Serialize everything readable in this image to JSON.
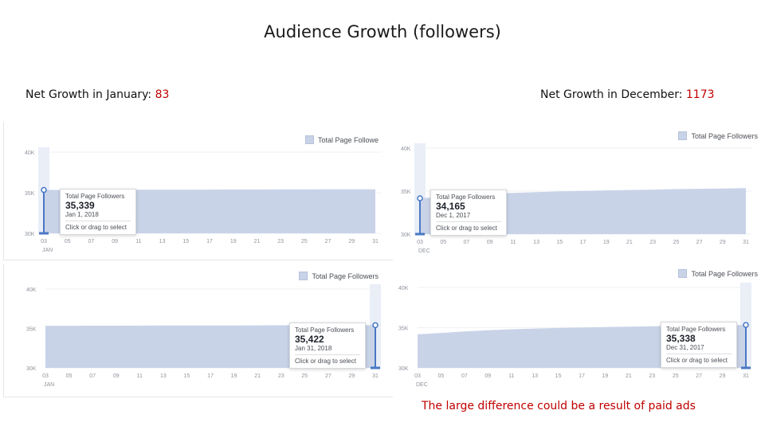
{
  "slide": {
    "title": "Audience Growth (followers)",
    "net_left_label": "Net Growth in January: ",
    "net_left_value": "83",
    "net_right_label": "Net Growth in December: ",
    "net_right_value": "1173",
    "note": "The large difference could be a result of paid ads"
  },
  "colors": {
    "area": "#c9d3e8",
    "selection": "#4a78c4",
    "selection_band": "#e9eef7",
    "tick": "#90949c",
    "accent_text": "#c00000"
  },
  "chart_data": [
    {
      "type": "area",
      "legend": "Total Page Followe",
      "x": [
        "03",
        "05",
        "07",
        "09",
        "11",
        "13",
        "15",
        "17",
        "19",
        "21",
        "23",
        "25",
        "27",
        "29",
        "31"
      ],
      "x_month_label": "JAN",
      "y_ticks": [
        "40K",
        "35K",
        "30K"
      ],
      "ylim": [
        30000,
        40000
      ],
      "series": [
        {
          "name": "Total Page Followers",
          "values": [
            35339,
            35346,
            35352,
            35358,
            35364,
            35370,
            35376,
            35382,
            35388,
            35394,
            35400,
            35406,
            35412,
            35418,
            35422
          ]
        }
      ],
      "tooltip": {
        "header": "Total Page Followers",
        "value": "35,339",
        "date": "Jan 1, 2018",
        "hint": "Click or drag to select"
      },
      "selected": "start"
    },
    {
      "type": "area",
      "legend": "Total Page Followers",
      "x": [
        "03",
        "05",
        "07",
        "09",
        "11",
        "13",
        "15",
        "17",
        "19",
        "21",
        "23",
        "25",
        "27",
        "29",
        "31"
      ],
      "x_month_label": "DEC",
      "y_ticks": [
        "40K",
        "35K",
        "30K"
      ],
      "ylim": [
        30000,
        40000
      ],
      "series": [
        {
          "name": "Total Page Followers",
          "values": [
            34165,
            34350,
            34520,
            34680,
            34800,
            34890,
            34960,
            35020,
            35080,
            35130,
            35180,
            35230,
            35270,
            35310,
            35338
          ]
        }
      ],
      "tooltip": {
        "header": "Total Page Followers",
        "value": "34,165",
        "date": "Dec 1, 2017",
        "hint": "Click or drag to select"
      },
      "selected": "start"
    },
    {
      "type": "area",
      "legend": "Total Page Followers",
      "x": [
        "03",
        "05",
        "07",
        "09",
        "11",
        "13",
        "15",
        "17",
        "19",
        "21",
        "23",
        "25",
        "27",
        "29",
        "31"
      ],
      "x_month_label": "JAN",
      "y_ticks": [
        "40K",
        "35K",
        "30K"
      ],
      "ylim": [
        30000,
        40000
      ],
      "series": [
        {
          "name": "Total Page Followers",
          "values": [
            35339,
            35346,
            35352,
            35358,
            35364,
            35370,
            35376,
            35382,
            35388,
            35394,
            35400,
            35406,
            35412,
            35418,
            35422
          ]
        }
      ],
      "tooltip": {
        "header": "Total Page Followers",
        "value": "35,422",
        "date": "Jan 31, 2018",
        "hint": "Click or drag to select"
      },
      "selected": "end"
    },
    {
      "type": "area",
      "legend": "Total Page Followers",
      "x": [
        "03",
        "05",
        "07",
        "09",
        "11",
        "13",
        "15",
        "17",
        "19",
        "21",
        "23",
        "25",
        "27",
        "29",
        "31"
      ],
      "x_month_label": "DEC",
      "y_ticks": [
        "40K",
        "35K",
        "30K"
      ],
      "ylim": [
        30000,
        40000
      ],
      "series": [
        {
          "name": "Total Page Followers",
          "values": [
            34165,
            34350,
            34520,
            34680,
            34800,
            34890,
            34960,
            35020,
            35080,
            35130,
            35180,
            35230,
            35270,
            35310,
            35338
          ]
        }
      ],
      "tooltip": {
        "header": "Total Page Followers",
        "value": "35,338",
        "date": "Dec 31, 2017",
        "hint": "Click or drag to select"
      },
      "selected": "end"
    }
  ]
}
